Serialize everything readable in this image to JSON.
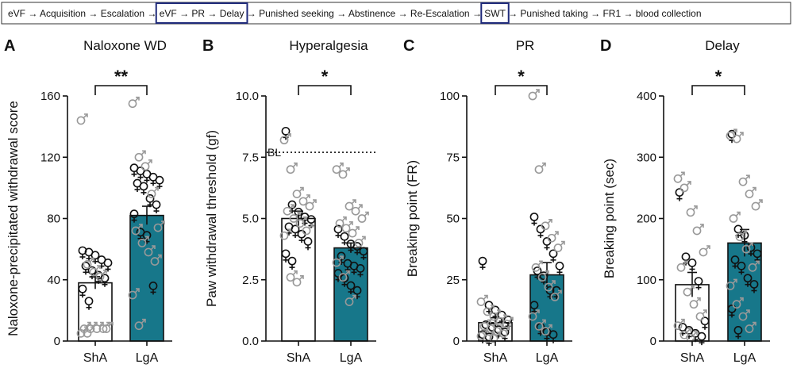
{
  "timeline": {
    "segments": [
      "eVF → Acquisition → Escalation → ",
      "eVF → PR → Delay",
      " → Punished seeking → Abstinence → Re-Escalation → ",
      "SWT",
      " → Punished taking → FR1 → blood collection"
    ],
    "highlighted": [
      false,
      true,
      false,
      true,
      false
    ]
  },
  "colors": {
    "sha_bar": "#ffffff",
    "lga_bar": "#17778a",
    "axis": "#111111",
    "female_marker": "#111111",
    "male_marker": "#999999",
    "highlight": "#1f2a7a"
  },
  "chart_data": [
    {
      "panel": "A",
      "type": "bar",
      "title": "Naloxone WD",
      "ylabel": "Naloxone-precipitated withdrawal score",
      "categories": [
        "ShA",
        "LgA"
      ],
      "ylim": [
        0,
        160
      ],
      "yticks": [
        0,
        40,
        80,
        120,
        160
      ],
      "ytick_labels": [
        "0",
        "40",
        "80",
        "120",
        "160"
      ],
      "values": [
        38,
        82
      ],
      "sem": [
        4,
        6
      ],
      "significance": "**",
      "points": [
        {
          "group": "ShA",
          "sex": "female",
          "values": [
            58,
            57,
            55,
            52,
            50,
            48,
            45,
            42,
            40,
            33,
            25
          ]
        },
        {
          "group": "ShA",
          "sex": "male",
          "values": [
            144,
            50,
            45,
            42,
            8,
            8,
            8,
            8,
            8,
            5,
            5
          ]
        },
        {
          "group": "LgA",
          "sex": "female",
          "values": [
            112,
            110,
            108,
            106,
            104,
            102,
            100,
            92,
            88,
            82,
            70,
            68,
            35
          ]
        },
        {
          "group": "LgA",
          "sex": "male",
          "values": [
            155,
            120,
            114,
            96,
            74,
            72,
            64,
            58,
            52,
            30,
            10
          ]
        }
      ]
    },
    {
      "panel": "B",
      "type": "bar",
      "title": "Hyperalgesia",
      "ylabel": "Paw withdrawal threshold (gf)",
      "categories": [
        "ShA",
        "LgA"
      ],
      "ylim": [
        0,
        10
      ],
      "yticks": [
        0,
        2.5,
        5,
        7.5,
        10
      ],
      "ytick_labels": [
        "0.0",
        "2.5",
        "5.0",
        "7.5",
        "10.0"
      ],
      "values": [
        5.0,
        3.8
      ],
      "sem": [
        0.3,
        0.2
      ],
      "significance": "*",
      "baseline": {
        "label": "BL",
        "value": 7.7
      },
      "points": [
        {
          "group": "ShA",
          "sex": "female",
          "values": [
            8.5,
            5.5,
            5.2,
            5.0,
            4.9,
            4.6,
            4.5,
            4.3,
            4.0,
            3.5,
            3.2
          ]
        },
        {
          "group": "ShA",
          "sex": "male",
          "values": [
            8.2,
            7.0,
            6.0,
            5.7,
            5.5,
            5.3,
            5.0,
            4.8,
            4.5,
            4.3,
            2.6,
            2.4
          ]
        },
        {
          "group": "LgA",
          "sex": "female",
          "values": [
            4.5,
            4.2,
            3.9,
            3.8,
            3.6,
            3.4,
            3.1,
            3.0,
            2.9,
            2.7,
            2.5,
            2.2,
            2.0
          ]
        },
        {
          "group": "LgA",
          "sex": "male",
          "values": [
            7.0,
            6.8,
            5.5,
            5.3,
            5.0,
            4.8,
            4.6,
            4.4,
            4.0,
            3.2,
            2.6,
            1.6
          ]
        }
      ]
    },
    {
      "panel": "C",
      "type": "bar",
      "title": "PR",
      "ylabel": "Breaking point (FR)",
      "categories": [
        "ShA",
        "LgA"
      ],
      "ylim": [
        0,
        100
      ],
      "yticks": [
        0,
        25,
        50,
        75,
        100
      ],
      "ytick_labels": [
        "0",
        "25",
        "50",
        "75",
        "100"
      ],
      "values": [
        7.5,
        27
      ],
      "sem": [
        2,
        5
      ],
      "significance": "*",
      "points": [
        {
          "group": "ShA",
          "sex": "female",
          "values": [
            32,
            14,
            12,
            10,
            8,
            6,
            5,
            4,
            3,
            2,
            1
          ]
        },
        {
          "group": "ShA",
          "sex": "male",
          "values": [
            16,
            12,
            10,
            8,
            7,
            6,
            5,
            4,
            3,
            2,
            1,
            1
          ]
        },
        {
          "group": "LgA",
          "sex": "female",
          "values": [
            50,
            45,
            40,
            35,
            30,
            28,
            26,
            20,
            20,
            14,
            5,
            3,
            2
          ]
        },
        {
          "group": "LgA",
          "sex": "male",
          "values": [
            100,
            70,
            47,
            42,
            38,
            30,
            26,
            22,
            18,
            10,
            6,
            4
          ]
        }
      ]
    },
    {
      "panel": "D",
      "type": "bar",
      "title": "Delay",
      "ylabel": "Breaking point (sec)",
      "categories": [
        "ShA",
        "LgA"
      ],
      "ylim": [
        0,
        400
      ],
      "yticks": [
        0,
        100,
        200,
        300,
        400
      ],
      "ytick_labels": [
        "0",
        "100",
        "200",
        "300",
        "400"
      ],
      "values": [
        92,
        160
      ],
      "sem": [
        20,
        22
      ],
      "significance": "*",
      "points": [
        {
          "group": "ShA",
          "sex": "female",
          "values": [
            240,
            135,
            125,
            95,
            30,
            20,
            15,
            10,
            5
          ]
        },
        {
          "group": "ShA",
          "sex": "male",
          "values": [
            265,
            250,
            210,
            180,
            145,
            120,
            80,
            60,
            40,
            25,
            10,
            5
          ]
        },
        {
          "group": "LgA",
          "sex": "female",
          "values": [
            335,
            180,
            170,
            150,
            140,
            130,
            120,
            100,
            90,
            50,
            15
          ]
        },
        {
          "group": "LgA",
          "sex": "male",
          "values": [
            335,
            330,
            260,
            240,
            220,
            200,
            170,
            150,
            120,
            90,
            60,
            40,
            20
          ]
        }
      ]
    }
  ]
}
